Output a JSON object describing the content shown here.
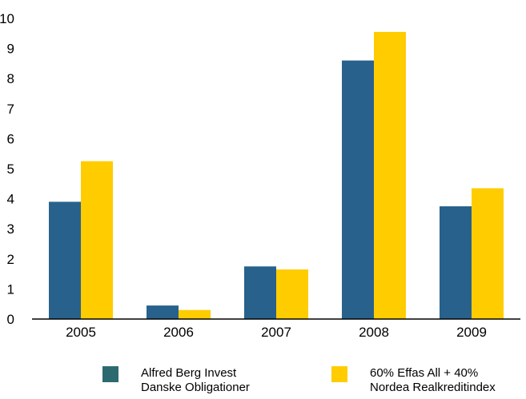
{
  "chart_data": {
    "type": "bar",
    "categories": [
      "2005",
      "2006",
      "2007",
      "2008",
      "2009"
    ],
    "series": [
      {
        "name": "Alfred Berg Invest Danske Obligationer",
        "legend_lines": [
          "Alfred Berg Invest",
          "Danske Obligationer"
        ],
        "color": "#28628c",
        "values": [
          3.9,
          0.45,
          1.75,
          8.6,
          3.75
        ]
      },
      {
        "name": "60% Effas All + 40% Nordea Realkreditindex",
        "legend_lines": [
          "60% Effas All + 40%",
          "Nordea Realkreditindex"
        ],
        "color": "#ffcc00",
        "values": [
          5.25,
          0.3,
          1.65,
          9.55,
          4.35
        ]
      }
    ],
    "yticks": [
      "0",
      "1",
      "2",
      "3",
      "4",
      "5",
      "6",
      "7",
      "8",
      "9",
      "10"
    ],
    "ylim": [
      0,
      10
    ],
    "grid": false,
    "legend_position": "bottom"
  },
  "legend": {
    "swatch_colors": [
      "#2d6a70",
      "#ffcc00"
    ]
  }
}
